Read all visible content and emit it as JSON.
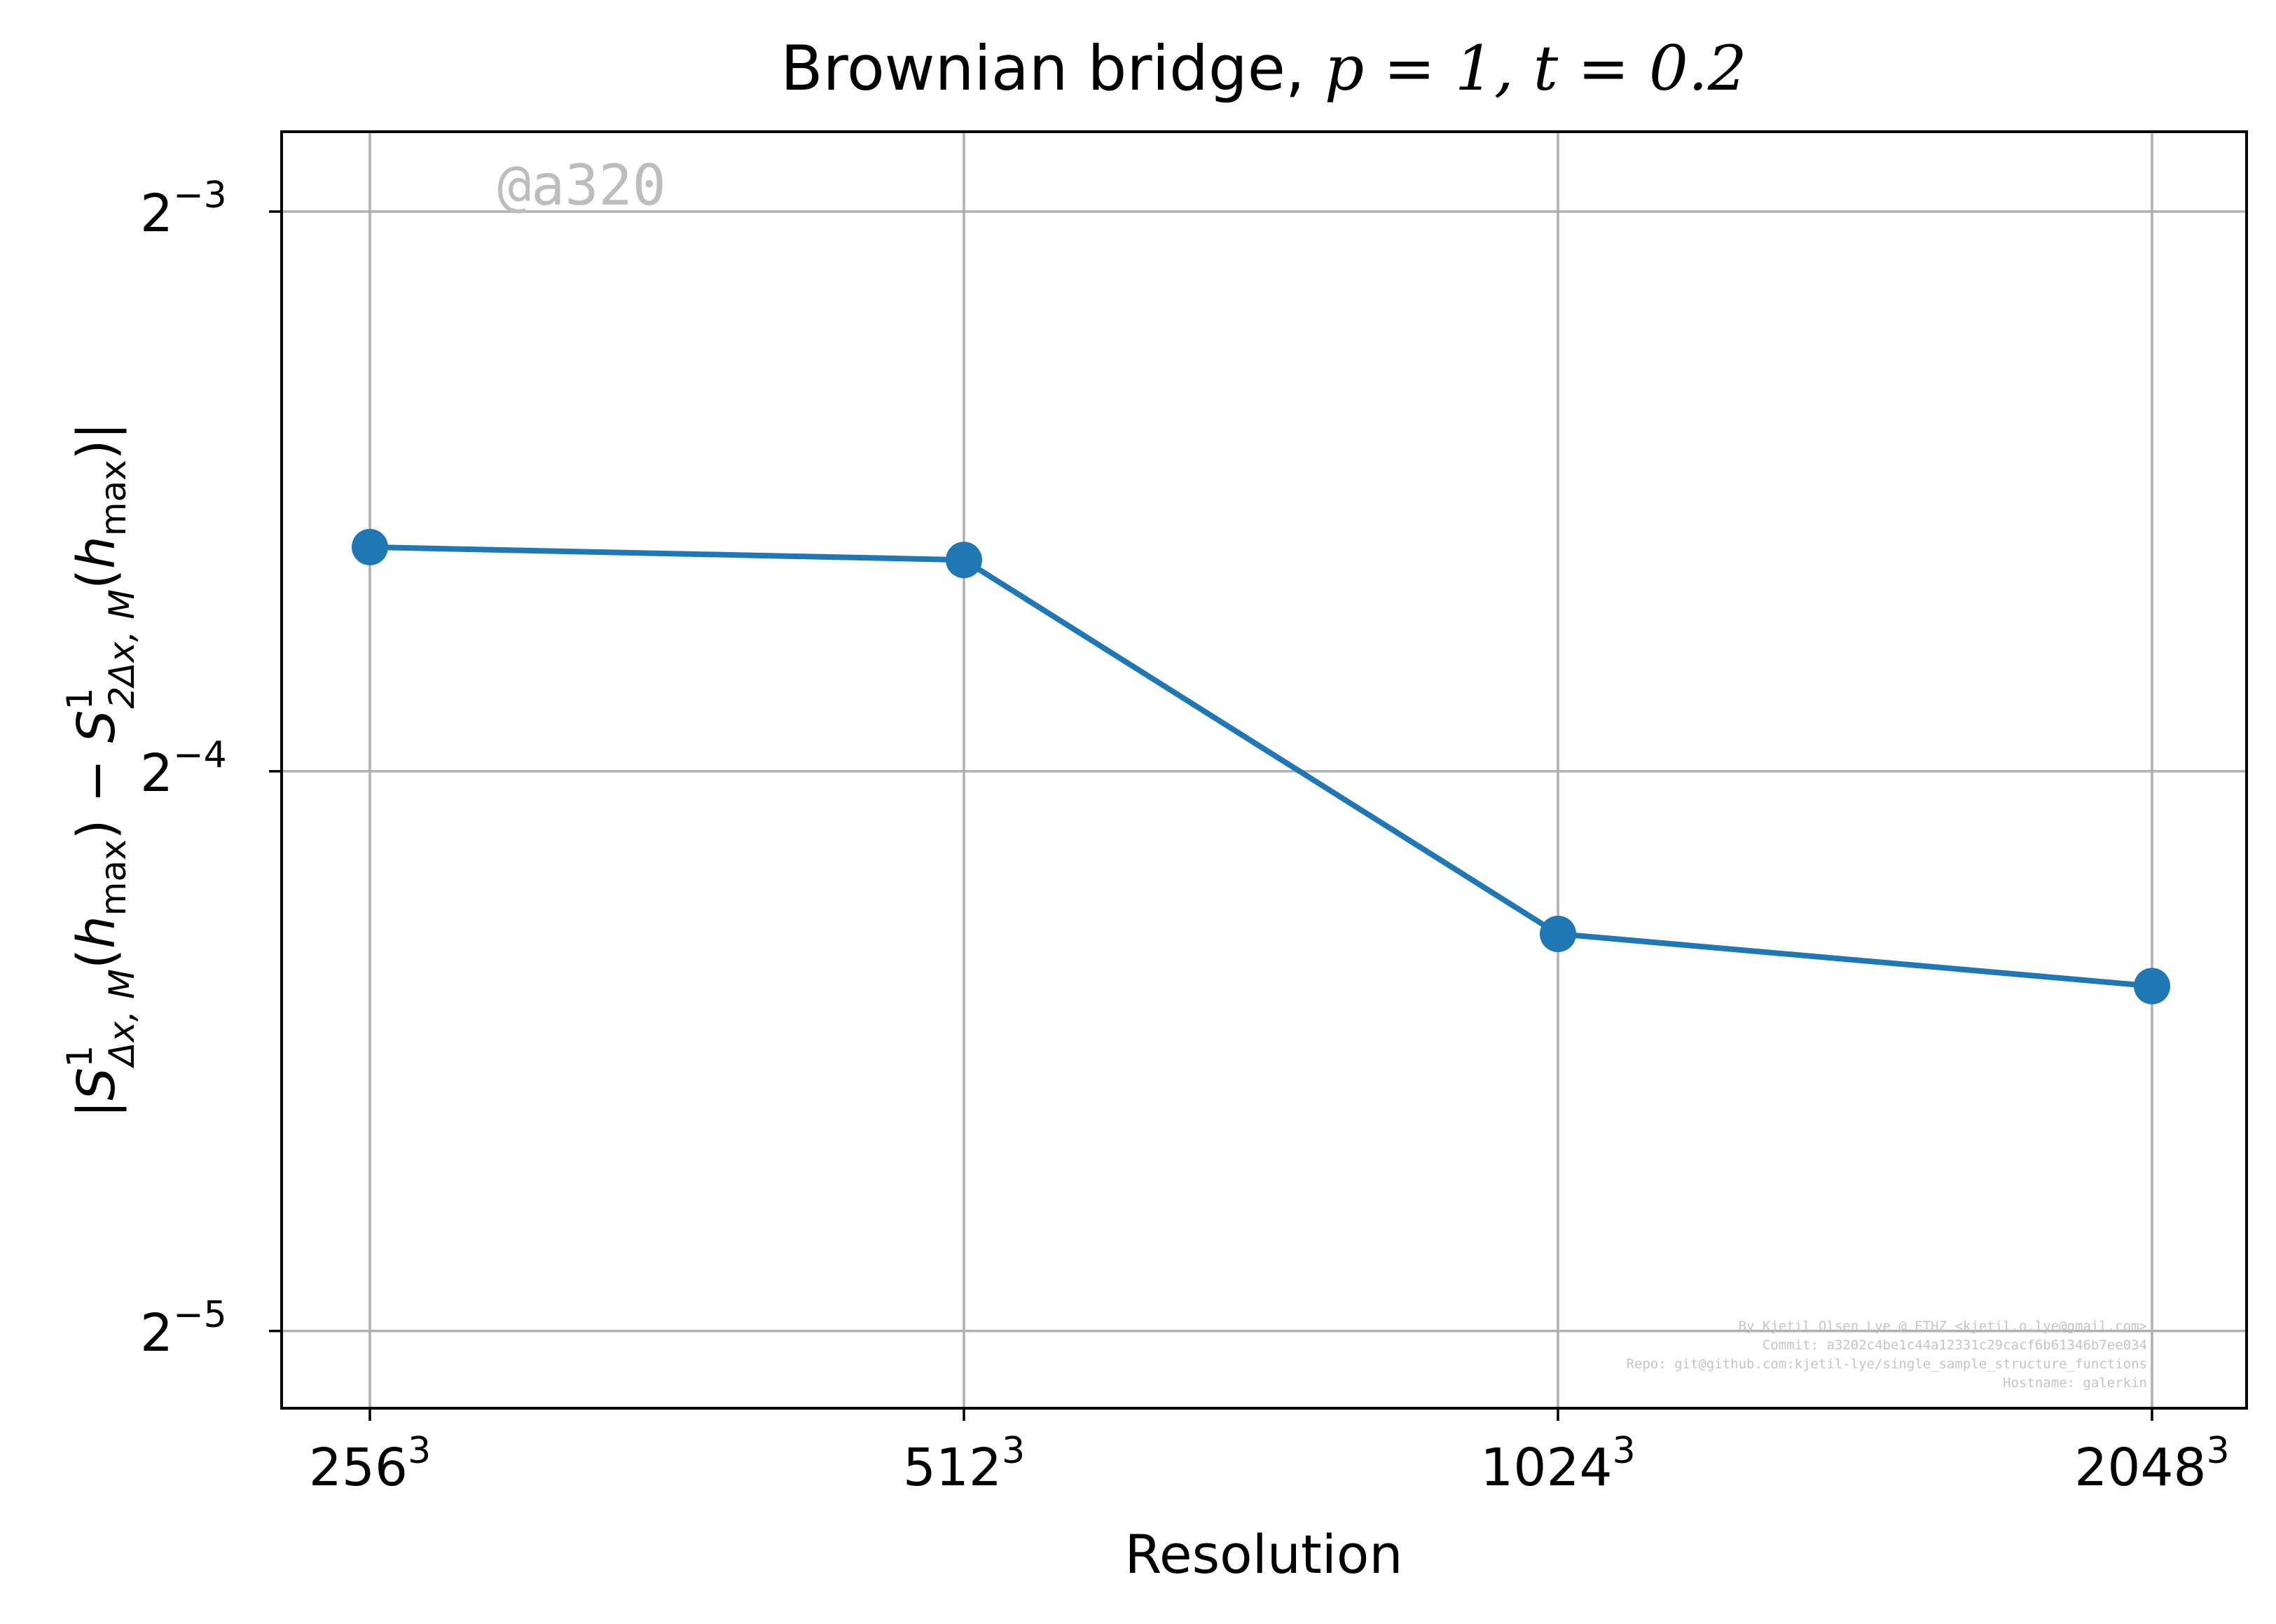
{
  "chart_data": {
    "type": "line",
    "title": {
      "prefix": "Brownian bridge, ",
      "math": "p = 1, t = 0.2"
    },
    "xlabel": "Resolution",
    "ylabel": {
      "bar_open": "|",
      "term1_main": "S",
      "term1_sup": "1",
      "term1_sub": "Δx, M",
      "term1_arg_open": "(",
      "term1_h": "h",
      "term1_max": "max",
      "term1_arg_close": ")",
      "minus": " − ",
      "term2_main": "S",
      "term2_sup": "1",
      "term2_sub": "2Δx, M",
      "term2_arg_open": "(",
      "term2_h": "h",
      "term2_max": "max",
      "term2_arg_close": ")",
      "bar_close": "|"
    },
    "x_scale": "categorical",
    "y_scale": "log2",
    "categories": [
      {
        "base": "256",
        "exp": "3"
      },
      {
        "base": "512",
        "exp": "3"
      },
      {
        "base": "1024",
        "exp": "3"
      },
      {
        "base": "2048",
        "exp": "3"
      }
    ],
    "series": [
      {
        "values": [
          0.0825,
          0.0812,
          0.0511,
          0.0479
        ],
        "color": "#1f77b4",
        "marker": "circle"
      }
    ],
    "yticks": [
      {
        "value": 0.125,
        "base": "2",
        "exp": "−3"
      },
      {
        "value": 0.0625,
        "base": "2",
        "exp": "−4"
      },
      {
        "value": 0.03125,
        "base": "2",
        "exp": "−5"
      }
    ],
    "ylim": [
      0.0284,
      0.138
    ],
    "grid": true,
    "legend": "none",
    "watermark": "@a320",
    "footer": [
      "By Kjetil Olsen Lye @ ETHZ <kjetil.o.lye@gmail.com>",
      "Commit: a3202c4be1c44a12331c29cacf6b61346b7ee034",
      "Repo: git@github.com:kjetil-lye/single_sample_structure_functions",
      "Hostname: galerkin"
    ]
  }
}
